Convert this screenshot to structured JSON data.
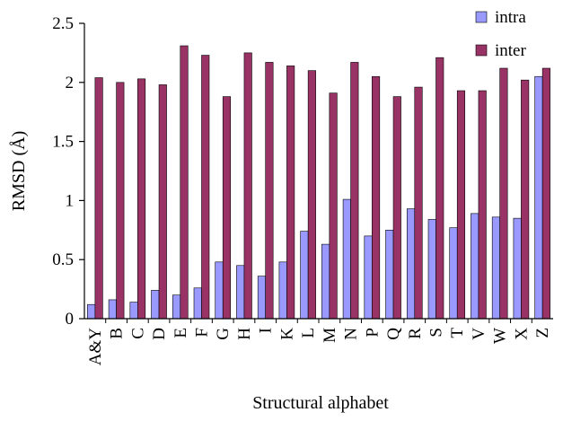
{
  "chart_data": {
    "type": "bar",
    "title": "",
    "xlabel": "Structural alphabet",
    "ylabel": "RMSD (Å)",
    "ylim": [
      0,
      2.5
    ],
    "yticks": [
      "0",
      "0.5",
      "1",
      "1.5",
      "2",
      "2.5"
    ],
    "grid": false,
    "legend_position": "top-right",
    "categories": [
      "A&Y",
      "B",
      "C",
      "D",
      "E",
      "F",
      "G",
      "H",
      "I",
      "K",
      "L",
      "M",
      "N",
      "P",
      "Q",
      "R",
      "S",
      "T",
      "V",
      "W",
      "X",
      "Z"
    ],
    "series": [
      {
        "name": "intra",
        "color": "#9999ff",
        "values": [
          0.12,
          0.16,
          0.14,
          0.24,
          0.2,
          0.26,
          0.48,
          0.45,
          0.36,
          0.48,
          0.74,
          0.63,
          1.01,
          0.7,
          0.75,
          0.93,
          0.84,
          0.77,
          0.89,
          0.86,
          0.85,
          2.05
        ]
      },
      {
        "name": "inter",
        "color": "#993366",
        "values": [
          2.04,
          2.0,
          2.03,
          1.98,
          2.31,
          2.23,
          1.88,
          2.25,
          2.17,
          2.14,
          2.1,
          1.91,
          2.17,
          2.05,
          1.88,
          1.96,
          2.21,
          1.93,
          1.93,
          2.12,
          2.02,
          2.12
        ]
      }
    ]
  }
}
